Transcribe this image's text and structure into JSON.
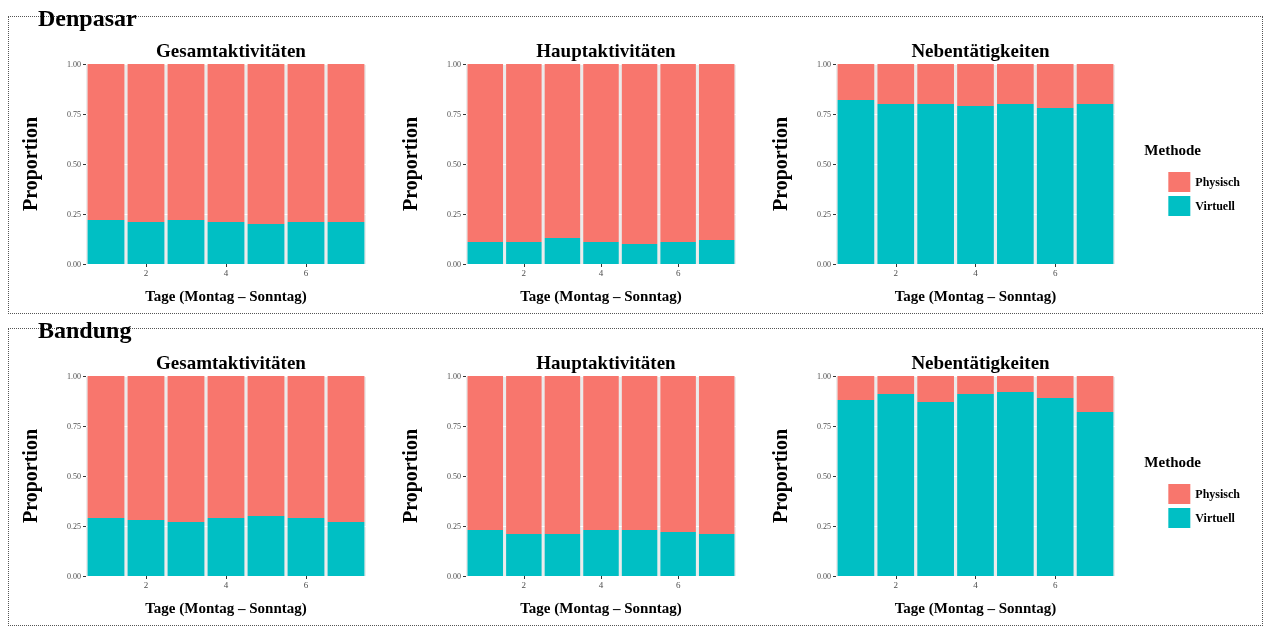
{
  "chart_data": [
    {
      "type": "bar",
      "title": "Gesamtaktivitäten",
      "annotations": [
        "Denpasar"
      ],
      "xlabel": "Tage (Montag – Sonntag)",
      "ylabel": "Proportion",
      "categories": [
        null,
        "2",
        null,
        "4",
        null,
        "6",
        null
      ],
      "stacked": true,
      "grid": "y",
      "legend": false,
      "ylim": [
        0,
        1
      ],
      "yticks": [
        {
          "value": 0,
          "label": "0.00"
        },
        {
          "value": 0.25,
          "label": "0.25"
        },
        {
          "value": 0.5,
          "label": "0.50"
        },
        {
          "value": 0.75,
          "label": "0.75"
        },
        {
          "value": 1,
          "label": "1.00"
        }
      ],
      "series": [
        {
          "color": "#00bfc4",
          "values": [
            0.22,
            0.21,
            0.22,
            0.21,
            0.2,
            0.21,
            0.21
          ]
        },
        {
          "color": "#f8766d",
          "values": [
            0.78,
            0.79,
            0.78,
            0.79,
            0.8,
            0.79,
            0.79
          ]
        }
      ]
    },
    {
      "type": "bar",
      "title": "Hauptaktivitäten",
      "xlabel": "Tage (Montag – Sonntag)",
      "ylabel": "Proportion",
      "categories": [
        null,
        "2",
        null,
        "4",
        null,
        "6",
        null
      ],
      "stacked": true,
      "grid": "y",
      "legend": false,
      "ylim": [
        0,
        1
      ],
      "yticks": [
        {
          "value": 0,
          "label": "0.00"
        },
        {
          "value": 0.25,
          "label": "0.25"
        },
        {
          "value": 0.5,
          "label": "0.50"
        },
        {
          "value": 0.75,
          "label": "0.75"
        },
        {
          "value": 1,
          "label": "1.00"
        }
      ],
      "series": [
        {
          "color": "#00bfc4",
          "values": [
            0.11,
            0.11,
            0.13,
            0.11,
            0.1,
            0.11,
            0.12
          ]
        },
        {
          "color": "#f8766d",
          "values": [
            0.89,
            0.89,
            0.87,
            0.89,
            0.9,
            0.89,
            0.88
          ]
        }
      ]
    },
    {
      "type": "bar",
      "title": "Nebentätigkeiten",
      "xlabel": "Tage (Montag – Sonntag)",
      "ylabel": "Proportion",
      "legend_title": "Methode",
      "legend": "right",
      "categories": [
        null,
        "2",
        null,
        "4",
        null,
        "6",
        null
      ],
      "stacked": true,
      "grid": "y",
      "ylim": [
        0,
        1
      ],
      "yticks": [
        {
          "value": 0,
          "label": "0.00"
        },
        {
          "value": 0.25,
          "label": "0.25"
        },
        {
          "value": 0.5,
          "label": "0.50"
        },
        {
          "value": 0.75,
          "label": "0.75"
        },
        {
          "value": 1,
          "label": "1.00"
        }
      ],
      "series": [
        {
          "name": "Virtuell",
          "color": "#00bfc4",
          "values": [
            0.82,
            0.8,
            0.8,
            0.79,
            0.8,
            0.78,
            0.8
          ]
        },
        {
          "name": "Physisch",
          "color": "#f8766d",
          "values": [
            0.18,
            0.2,
            0.2,
            0.21,
            0.2,
            0.22,
            0.2
          ]
        }
      ]
    },
    {
      "type": "bar",
      "title": "Gesamtaktivitäten",
      "annotations": [
        "Bandung"
      ],
      "xlabel": "Tage (Montag – Sonntag)",
      "ylabel": "Proportion",
      "categories": [
        null,
        "2",
        null,
        "4",
        null,
        "6",
        null
      ],
      "stacked": true,
      "grid": "y",
      "legend": false,
      "ylim": [
        0,
        1
      ],
      "yticks": [
        {
          "value": 0,
          "label": "0.00"
        },
        {
          "value": 0.25,
          "label": "0.25"
        },
        {
          "value": 0.5,
          "label": "0.50"
        },
        {
          "value": 0.75,
          "label": "0.75"
        },
        {
          "value": 1,
          "label": "1.00"
        }
      ],
      "series": [
        {
          "color": "#00bfc4",
          "values": [
            0.29,
            0.28,
            0.27,
            0.29,
            0.3,
            0.29,
            0.27
          ]
        },
        {
          "color": "#f8766d",
          "values": [
            0.71,
            0.72,
            0.73,
            0.71,
            0.7,
            0.71,
            0.73
          ]
        }
      ]
    },
    {
      "type": "bar",
      "title": "Hauptaktivitäten",
      "xlabel": "Tage (Montag – Sonntag)",
      "ylabel": "Proportion",
      "categories": [
        null,
        "2",
        null,
        "4",
        null,
        "6",
        null
      ],
      "stacked": true,
      "grid": "y",
      "legend": false,
      "ylim": [
        0,
        1
      ],
      "yticks": [
        {
          "value": 0,
          "label": "0.00"
        },
        {
          "value": 0.25,
          "label": "0.25"
        },
        {
          "value": 0.5,
          "label": "0.50"
        },
        {
          "value": 0.75,
          "label": "0.75"
        },
        {
          "value": 1,
          "label": "1.00"
        }
      ],
      "series": [
        {
          "color": "#00bfc4",
          "values": [
            0.23,
            0.21,
            0.21,
            0.23,
            0.23,
            0.22,
            0.21
          ]
        },
        {
          "color": "#f8766d",
          "values": [
            0.77,
            0.79,
            0.79,
            0.77,
            0.77,
            0.78,
            0.79
          ]
        }
      ]
    },
    {
      "type": "bar",
      "title": "Nebentätigkeiten",
      "xlabel": "Tage (Montag – Sonntag)",
      "ylabel": "Proportion",
      "legend_title": "Methode",
      "legend": "right",
      "categories": [
        null,
        "2",
        null,
        "4",
        null,
        "6",
        null
      ],
      "stacked": true,
      "grid": "y",
      "ylim": [
        0,
        1
      ],
      "yticks": [
        {
          "value": 0,
          "label": "0.00"
        },
        {
          "value": 0.25,
          "label": "0.25"
        },
        {
          "value": 0.5,
          "label": "0.50"
        },
        {
          "value": 0.75,
          "label": "0.75"
        },
        {
          "value": 1,
          "label": "1.00"
        }
      ],
      "series": [
        {
          "name": "Virtuell",
          "color": "#00bfc4",
          "values": [
            0.88,
            0.91,
            0.87,
            0.91,
            0.92,
            0.89,
            0.82
          ]
        },
        {
          "name": "Physisch",
          "color": "#f8766d",
          "values": [
            0.12,
            0.09,
            0.13,
            0.09,
            0.08,
            0.11,
            0.18
          ]
        }
      ]
    }
  ]
}
